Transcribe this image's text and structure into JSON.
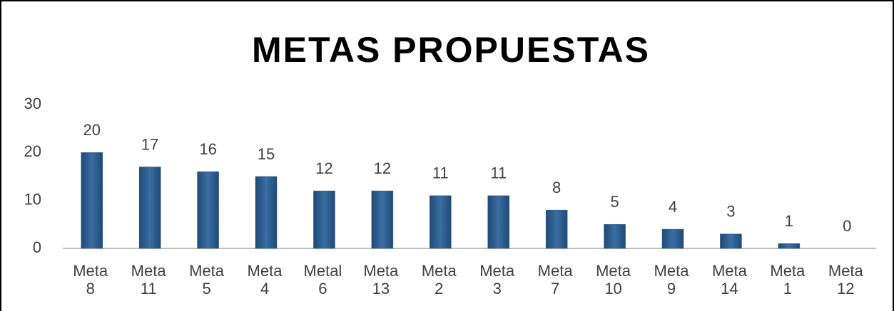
{
  "chart_data": {
    "type": "bar",
    "title": "METAS PROPUESTAS",
    "categories": [
      "Meta 8",
      "Meta 11",
      "Meta 5",
      "Meta 4",
      "Metal 6",
      "Meta 13",
      "Meta 2",
      "Meta 3",
      "Meta 7",
      "Meta 10",
      "Meta 9",
      "Meta 14",
      "Meta 1",
      "Meta 12"
    ],
    "values": [
      20,
      17,
      16,
      15,
      12,
      12,
      11,
      11,
      8,
      5,
      4,
      3,
      1,
      0
    ],
    "color": "#2f5d8c",
    "ylim": [
      0,
      30
    ],
    "yticks": [
      0,
      10,
      20,
      30
    ],
    "grid": false
  }
}
